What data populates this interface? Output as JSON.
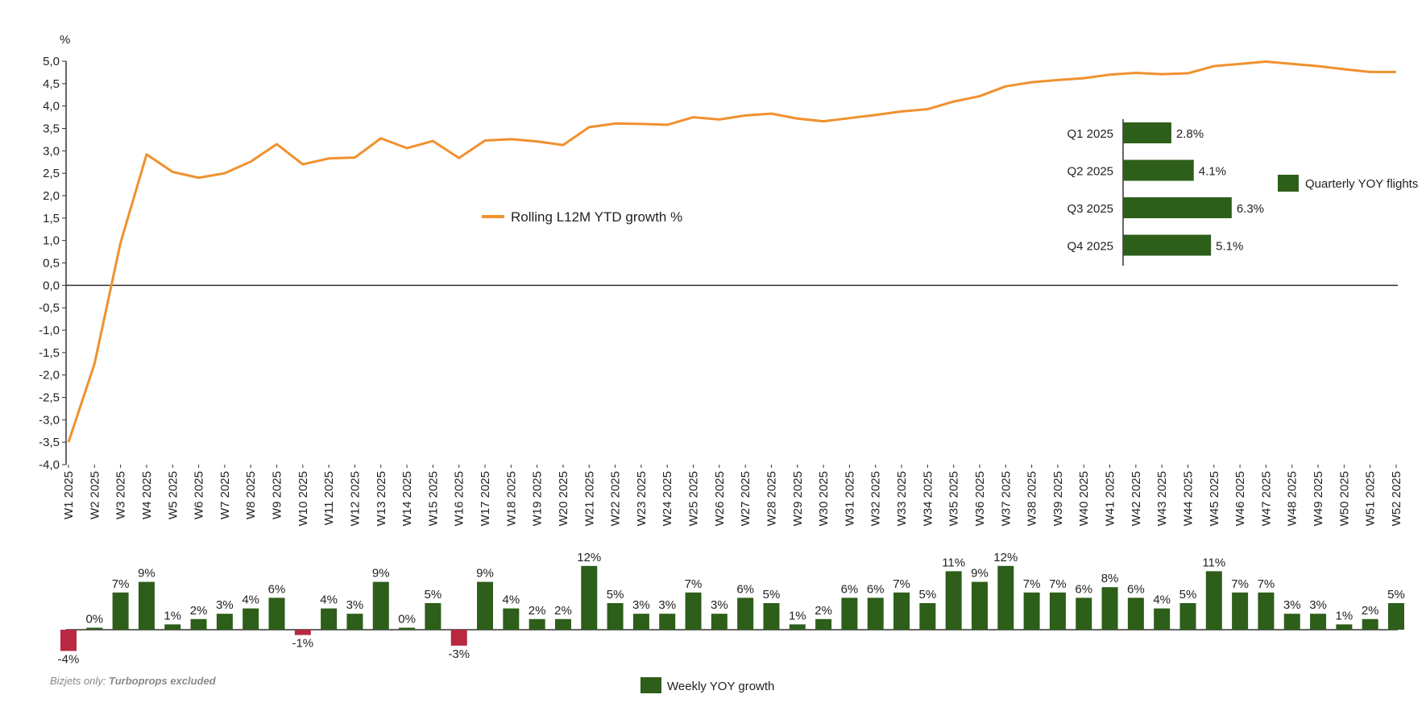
{
  "colors": {
    "line": "#F0912E",
    "bar_positive": "#2D5E1A",
    "bar_negative": "#B82840",
    "axis": "#333333"
  },
  "footnote": {
    "prefix": "Bizjets only: ",
    "emphasis": "Turboprops excluded"
  },
  "chart_data": [
    {
      "type": "line",
      "ylabel": "%",
      "ylim": [
        -4.0,
        5.0
      ],
      "yticks": [
        "5,0",
        "4,5",
        "4,0",
        "3,5",
        "3,0",
        "2,5",
        "2,0",
        "1,5",
        "1,0",
        "0,5",
        "0,0",
        "-0,5",
        "-1,0",
        "-1,5",
        "-2,0",
        "-2,5",
        "-3,0",
        "-3,5",
        "-4,0"
      ],
      "grid": false,
      "legend": "center",
      "categories": [
        "W1 2025",
        "W2 2025",
        "W3 2025",
        "W4 2025",
        "W5 2025",
        "W6 2025",
        "W7 2025",
        "W8 2025",
        "W9 2025",
        "W10 2025",
        "W11 2025",
        "W12 2025",
        "W13 2025",
        "W14 2025",
        "W15 2025",
        "W16 2025",
        "W17 2025",
        "W18 2025",
        "W19 2025",
        "W20 2025",
        "W21 2025",
        "W22 2025",
        "W23 2025",
        "W24 2025",
        "W25 2025",
        "W26 2025",
        "W27 2025",
        "W28 2025",
        "W29 2025",
        "W30 2025",
        "W31 2025",
        "W32 2025",
        "W33 2025",
        "W34 2025",
        "W35 2025",
        "W36 2025",
        "W37 2025",
        "W38 2025",
        "W39 2025",
        "W40 2025",
        "W41 2025",
        "W42 2025",
        "W43 2025",
        "W44 2025",
        "W45 2025",
        "W46 2025",
        "W47 2025",
        "W48 2025",
        "W49 2025",
        "W50 2025",
        "W51 2025",
        "W52 2025"
      ],
      "series": [
        {
          "name": "Rolling L12M YTD growth %",
          "values": [
            -3.5,
            -1.75,
            0.95,
            2.92,
            2.53,
            2.4,
            2.5,
            2.76,
            3.15,
            2.7,
            2.83,
            2.85,
            3.28,
            3.06,
            3.22,
            2.84,
            3.23,
            3.26,
            3.21,
            3.13,
            3.53,
            3.61,
            3.6,
            3.58,
            3.75,
            3.7,
            3.79,
            3.83,
            3.72,
            3.66,
            3.73,
            3.8,
            3.88,
            3.93,
            4.1,
            4.22,
            4.44,
            4.53,
            4.58,
            4.62,
            4.7,
            4.74,
            4.71,
            4.73,
            4.89,
            4.94,
            4.99,
            4.94,
            4.89,
            4.82,
            4.76,
            4.76
          ]
        }
      ]
    },
    {
      "type": "bar",
      "orientation": "horizontal",
      "legend": "right",
      "categories": [
        "Q1 2025",
        "Q2 2025",
        "Q3 2025",
        "Q4 2025"
      ],
      "series": [
        {
          "name": "Quarterly YOY flights",
          "values": [
            2.8,
            4.1,
            6.3,
            5.1
          ],
          "labels": [
            "2.8%",
            "4.1%",
            "6.3%",
            "5.1%"
          ]
        }
      ]
    },
    {
      "type": "bar",
      "legend": "bottom",
      "series": [
        {
          "name": "Weekly YOY growth",
          "values": [
            -4,
            0,
            7,
            9,
            1,
            2,
            3,
            4,
            6,
            -1,
            4,
            3,
            9,
            0,
            5,
            -3,
            9,
            4,
            2,
            2,
            12,
            5,
            3,
            3,
            7,
            3,
            6,
            5,
            1,
            2,
            6,
            6,
            7,
            5,
            11,
            9,
            12,
            7,
            7,
            6,
            8,
            6,
            4,
            5,
            11,
            7,
            7,
            3,
            3,
            1,
            2,
            5
          ],
          "labels": [
            "-4%",
            "0%",
            "7%",
            "9%",
            "1%",
            "2%",
            "3%",
            "4%",
            "6%",
            "-1%",
            "4%",
            "3%",
            "9%",
            "0%",
            "5%",
            "-3%",
            "9%",
            "4%",
            "2%",
            "2%",
            "12%",
            "5%",
            "3%",
            "3%",
            "7%",
            "3%",
            "6%",
            "5%",
            "1%",
            "2%",
            "6%",
            "6%",
            "7%",
            "5%",
            "11%",
            "9%",
            "12%",
            "7%",
            "7%",
            "6%",
            "8%",
            "6%",
            "4%",
            "5%",
            "11%",
            "7%",
            "7%",
            "3%",
            "3%",
            "1%",
            "2%",
            "5%"
          ]
        }
      ]
    }
  ]
}
